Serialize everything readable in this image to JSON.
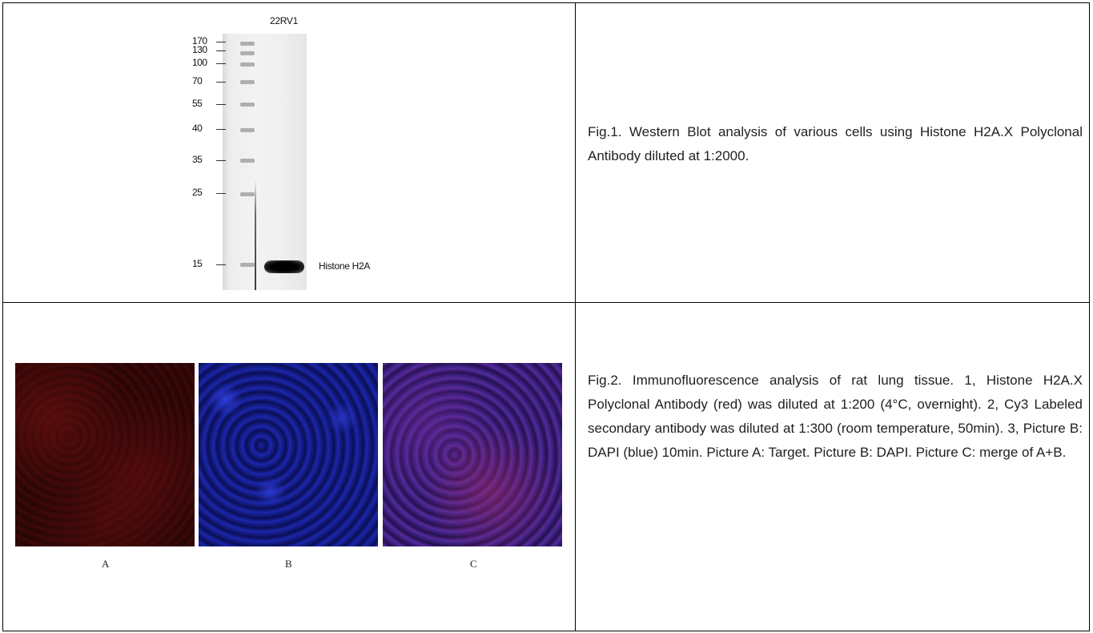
{
  "figure1": {
    "lane_label": "22RV1",
    "mw_markers": [
      "170",
      "130",
      "100",
      "70",
      "55",
      "40",
      "35",
      "25",
      "15"
    ],
    "band_label": "Histone H2A",
    "caption": "Fig.1. Western Blot analysis of various cells using Histone H2A.X Polyclonal Antibody diluted at 1:2000."
  },
  "figure2": {
    "panels": [
      "A",
      "B",
      "C"
    ],
    "caption": "Fig.2. Immunofluorescence analysis of rat lung tissue. 1, Histone H2A.X Polyclonal Antibody (red) was diluted at 1:200 (4°C, overnight). 2, Cy3 Labeled secondary antibody was diluted at 1:300 (room temperature, 50min). 3, Picture B: DAPI (blue) 10min. Picture A: Target. Picture B: DAPI. Picture C: merge of A+B."
  }
}
